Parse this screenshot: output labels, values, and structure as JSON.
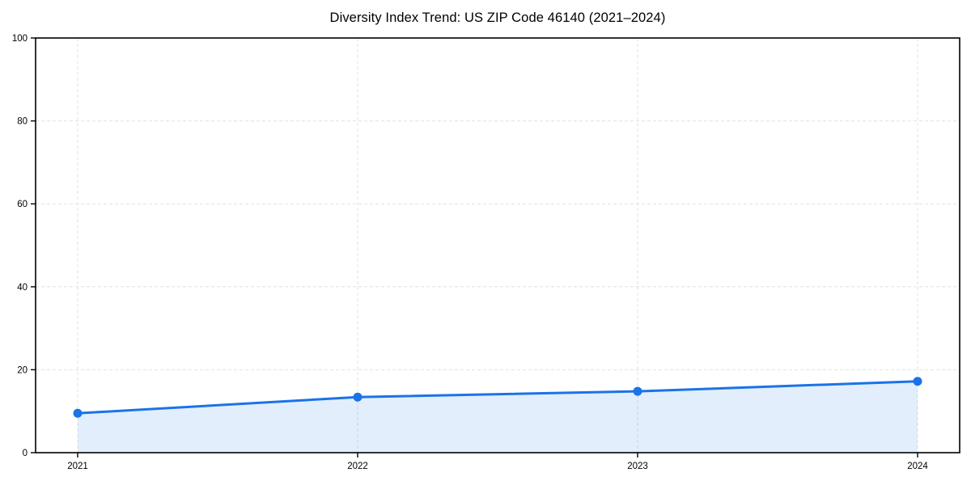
{
  "chart_data": {
    "type": "area",
    "title": "Diversity Index Trend: US ZIP Code 46140 (2021–2024)",
    "xlabel": "",
    "ylabel": "",
    "x": [
      2021,
      2022,
      2023,
      2024
    ],
    "x_tick_labels": [
      "2021",
      "2022",
      "2023",
      "2024"
    ],
    "series": [
      {
        "name": "Diversity Index",
        "values": [
          9.5,
          13.4,
          14.8,
          17.2
        ]
      }
    ],
    "ylim": [
      0,
      100
    ],
    "y_ticks": [
      0,
      20,
      40,
      60,
      80,
      100
    ],
    "grid": "both-dashed",
    "legend": "none",
    "colors": {
      "line": "#1a73e8",
      "marker": "#1a73e8",
      "fill": "rgba(26,115,232,0.12)",
      "grid": "#e0e0e0",
      "spine": "#000000",
      "text": "#000000",
      "background": "#ffffff"
    }
  }
}
